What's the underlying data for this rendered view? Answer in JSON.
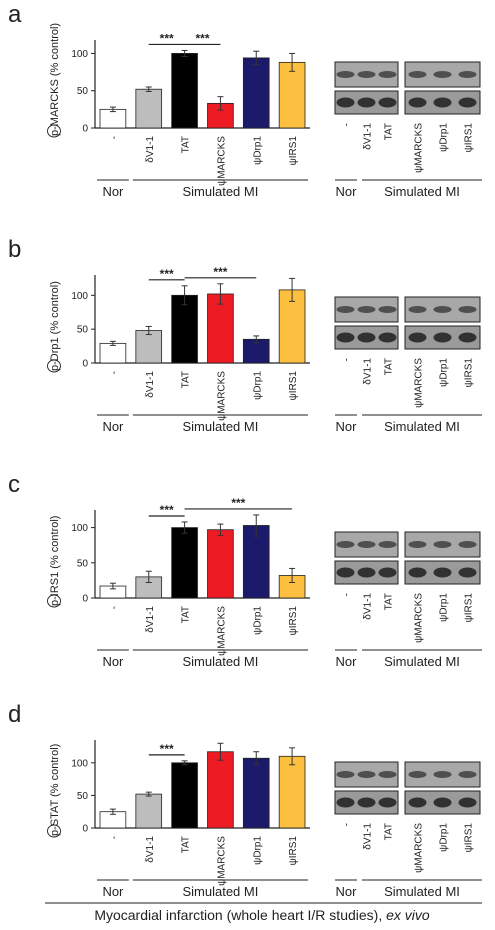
{
  "chart_data": [
    {
      "type": "bar",
      "panel": "a",
      "ylabel": "p-MARCKS (% control)",
      "categories": [
        "-",
        "δV1-1",
        "TAT",
        "ψMARCKS",
        "ψDrp1",
        "ψIRS1"
      ],
      "values": [
        25,
        52,
        100,
        33,
        94,
        88
      ],
      "errors": [
        3,
        3,
        4,
        9,
        9,
        12
      ],
      "colors": [
        "#ffffff",
        "#bdbdbd",
        "#000000",
        "#ed1c24",
        "#1b1a6b",
        "#fdbf3f"
      ],
      "ylim": [
        0,
        118
      ],
      "yticks": [
        0,
        50,
        100
      ],
      "annotations": [
        {
          "text": "***",
          "span": [
            1,
            2
          ]
        },
        {
          "text": "***",
          "span": [
            2,
            3
          ]
        }
      ],
      "groups": [
        {
          "label": "Nor",
          "span": [
            0,
            0
          ]
        },
        {
          "label": "Simulated MI",
          "span": [
            1,
            5
          ]
        }
      ]
    },
    {
      "type": "bar",
      "panel": "b",
      "ylabel": "p-Drp1 (% control)",
      "categories": [
        "-",
        "δV1-1",
        "TAT",
        "ψMARCKS",
        "ψDrp1",
        "ψIRS1"
      ],
      "values": [
        29,
        48,
        100,
        102,
        35,
        108
      ],
      "errors": [
        3,
        6,
        14,
        15,
        5,
        17
      ],
      "colors": [
        "#ffffff",
        "#bdbdbd",
        "#000000",
        "#ed1c24",
        "#1b1a6b",
        "#fdbf3f"
      ],
      "ylim": [
        0,
        130
      ],
      "yticks": [
        0,
        50,
        100
      ],
      "annotations": [
        {
          "text": "***",
          "span": [
            1,
            2
          ]
        },
        {
          "text": "***",
          "span": [
            2,
            4
          ]
        }
      ],
      "groups": [
        {
          "label": "Nor",
          "span": [
            0,
            0
          ]
        },
        {
          "label": "Simulated MI",
          "span": [
            1,
            5
          ]
        }
      ]
    },
    {
      "type": "bar",
      "panel": "c",
      "ylabel": "p-IRS1 (% control)",
      "categories": [
        "-",
        "δV1-1",
        "TAT",
        "ψMARCKS",
        "ψDrp1",
        "ψIRS1"
      ],
      "values": [
        17,
        30,
        100,
        97,
        103,
        32
      ],
      "errors": [
        4,
        8,
        8,
        8,
        15,
        10
      ],
      "colors": [
        "#ffffff",
        "#bdbdbd",
        "#000000",
        "#ed1c24",
        "#1b1a6b",
        "#fdbf3f"
      ],
      "ylim": [
        0,
        125
      ],
      "yticks": [
        0,
        50,
        100
      ],
      "annotations": [
        {
          "text": "***",
          "span": [
            1,
            2
          ]
        },
        {
          "text": "***",
          "span": [
            2,
            5
          ]
        }
      ],
      "groups": [
        {
          "label": "Nor",
          "span": [
            0,
            0
          ]
        },
        {
          "label": "Simulated MI",
          "span": [
            1,
            5
          ]
        }
      ]
    },
    {
      "type": "bar",
      "panel": "d",
      "ylabel": "p-STAT (% control)",
      "categories": [
        "-",
        "δV1-1",
        "TAT",
        "ψMARCKS",
        "ψDrp1",
        "ψIRS1"
      ],
      "values": [
        25,
        52,
        100,
        117,
        107,
        110
      ],
      "errors": [
        4,
        3,
        3,
        13,
        10,
        13
      ],
      "colors": [
        "#ffffff",
        "#bdbdbd",
        "#000000",
        "#ed1c24",
        "#1b1a6b",
        "#fdbf3f"
      ],
      "ylim": [
        0,
        135
      ],
      "yticks": [
        0,
        50,
        100
      ],
      "annotations": [
        {
          "text": "***",
          "span": [
            1,
            2
          ]
        }
      ],
      "groups": [
        {
          "label": "Nor",
          "span": [
            0,
            0
          ]
        },
        {
          "label": "Simulated MI",
          "span": [
            1,
            5
          ]
        }
      ]
    }
  ],
  "footer": {
    "text": "Myocardial infarction (whole heart I/R studies),",
    "italic": "ex vivo"
  }
}
